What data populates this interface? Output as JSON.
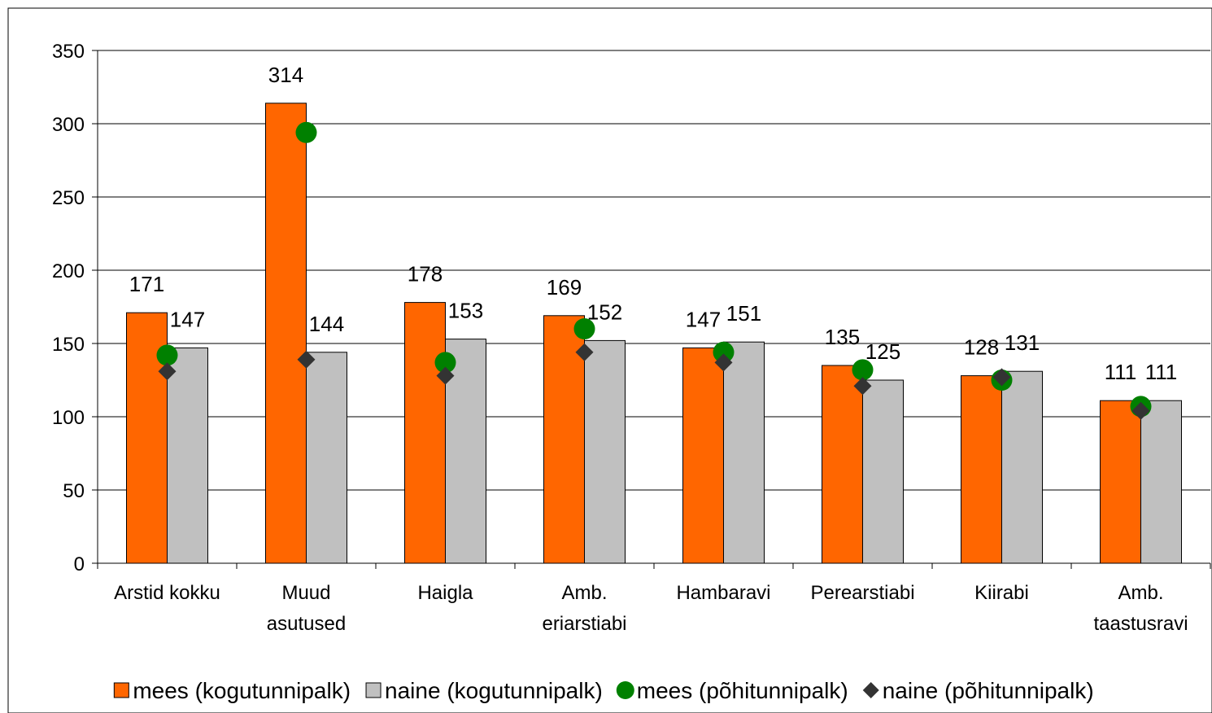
{
  "chart_data": {
    "type": "bar",
    "categories": [
      "Arstid kokku",
      "Muud\nasutused",
      "Haigla",
      "Amb.\neriarstiabi",
      "Hambaravi",
      "Perearstiabi",
      "Kiirabi",
      "Amb.\ntaastusravi"
    ],
    "series": [
      {
        "name": "mees (kogutunnipalk)",
        "type": "bar",
        "color": "#ff6600",
        "values": [
          171,
          314,
          178,
          169,
          147,
          135,
          128,
          111
        ],
        "labels": true
      },
      {
        "name": "naine (kogutunnipalk)",
        "type": "bar",
        "color": "#c0c0c0",
        "values": [
          147,
          144,
          153,
          152,
          151,
          125,
          131,
          111
        ],
        "labels": true
      },
      {
        "name": "mees (põhitunnipalk)",
        "type": "circle",
        "color": "#008000",
        "values": [
          142,
          294,
          137,
          160,
          144,
          132,
          125,
          107
        ]
      },
      {
        "name": "naine (põhitunnipalk)",
        "type": "diamond",
        "color": "#333333",
        "values": [
          131,
          139,
          128,
          144,
          137,
          121,
          127,
          104
        ]
      }
    ],
    "ylim": [
      0,
      350
    ],
    "yticks": [
      0,
      50,
      100,
      150,
      200,
      250,
      300,
      350
    ],
    "grid": true
  }
}
